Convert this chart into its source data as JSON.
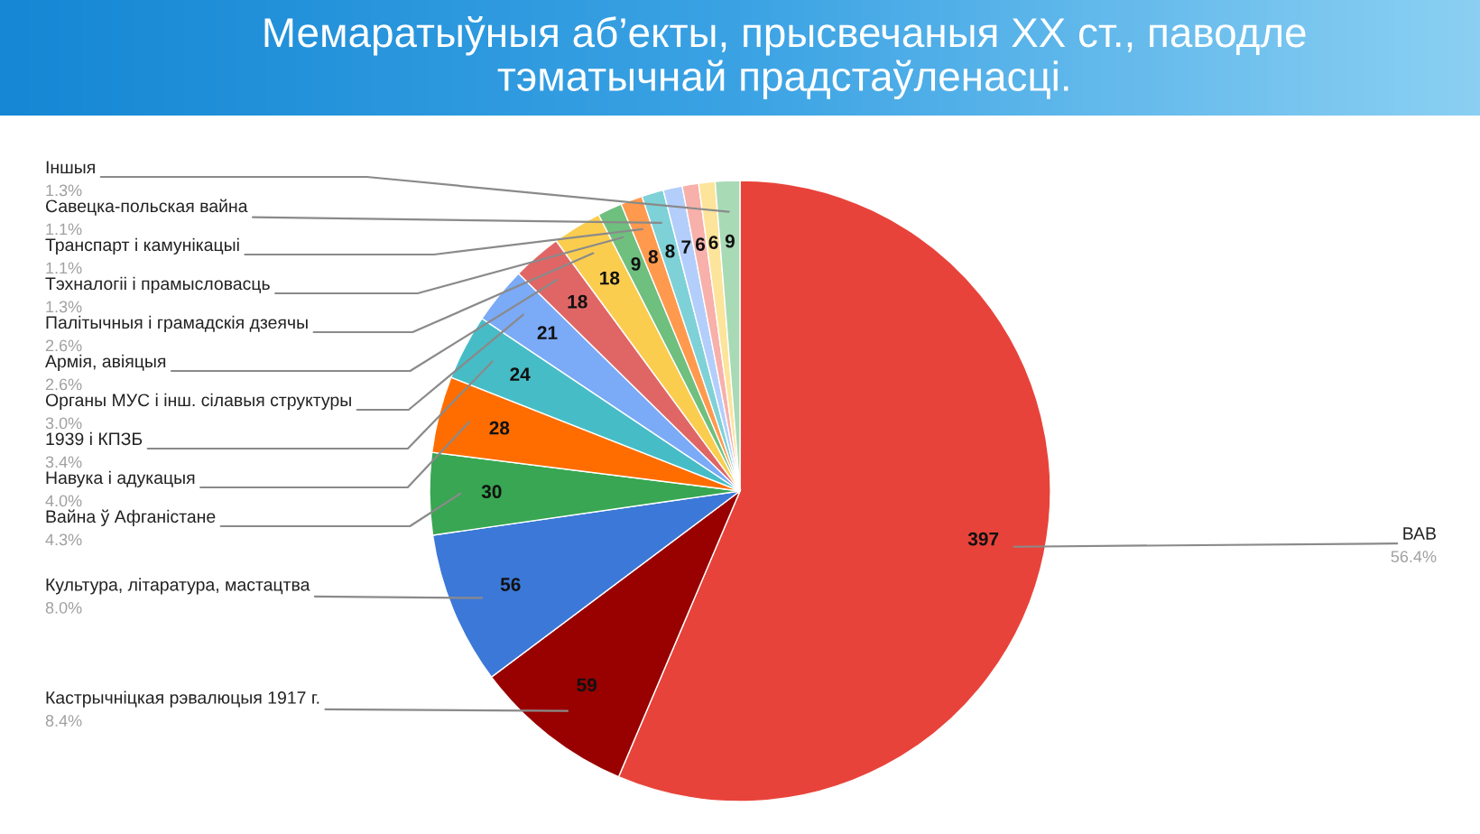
{
  "chart_data": {
    "type": "pie",
    "title": "Мемаратыўныя аб’екты, прысвечаныя XX ст., паводле\nтэматычнай прадстаўленасці.",
    "categories": [
      "ВАВ",
      "Кастрычніцкая рэвалюцыя 1917 г.",
      "Культура, літаратура, мастацтва",
      "Вайна ў Афганістане",
      "Навука і адукацыя",
      "1939 і КПЗБ",
      "Органы МУС і інш. сілавыя структуры",
      "Армія, авіяцыя",
      "Палітычныя і грамадскія дзеячы",
      "Тэхналогіі і прамысловасць",
      "Транспарт і камунікацыі",
      "Савецка-польская вайна",
      null,
      null,
      null,
      "Іншыя"
    ],
    "values": [
      397,
      59,
      56,
      30,
      28,
      24,
      21,
      18,
      18,
      9,
      8,
      8,
      7,
      6,
      6,
      9
    ],
    "colors": [
      "#e8433a",
      "#990000",
      "#3c78d8",
      "#38a652",
      "#ff6d01",
      "#46bdc6",
      "#7baaf7",
      "#e06666",
      "#fbcd4f",
      "#6fbf7f",
      "#ff994d",
      "#7ed1d7",
      "#b3cefb",
      "#f7b0aa",
      "#fde49b",
      "#a8dab5"
    ],
    "data_labels": true,
    "annotations": [
      {
        "text": "56.4%",
        "x": "ВАВ"
      },
      {
        "text": "8.4%",
        "x": "Кастрычніцкая рэвалюцыя 1917 г."
      },
      {
        "text": "8.0%",
        "x": "Культура, літаратура, мастацтва"
      },
      {
        "text": "4.3%",
        "x": "Вайна ў Афганістане"
      },
      {
        "text": "4.0%",
        "x": "Навука і адукацыя"
      },
      {
        "text": "3.4%",
        "x": "1939 і КПЗБ"
      },
      {
        "text": "3.0%",
        "x": "Органы МУС і інш. сілавыя структуры"
      },
      {
        "text": "2.6%",
        "x": "Армія, авіяцыя"
      },
      {
        "text": "2.6%",
        "x": "Палітычныя і грамадскія дзеячы"
      },
      {
        "text": "1.3%",
        "x": "Тэхналогіі і прамысловасць"
      },
      {
        "text": "1.1%",
        "x": "Транспарт і камунікацыі"
      },
      {
        "text": "1.1%",
        "x": "Савецка-польская вайна"
      },
      {
        "text": "1.3%",
        "x": "Іншыя"
      }
    ]
  }
}
